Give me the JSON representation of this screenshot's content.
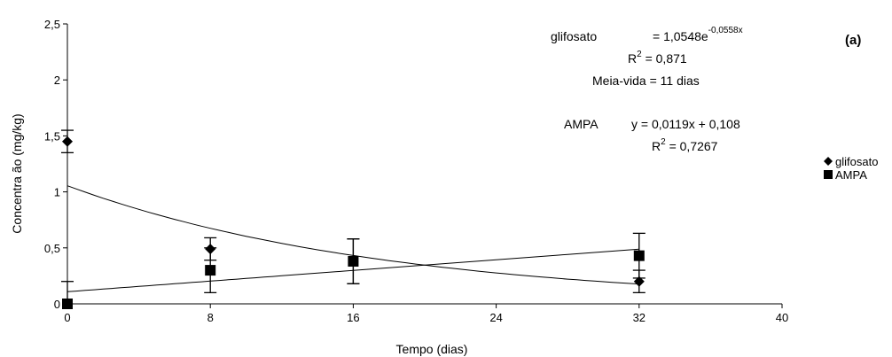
{
  "chart_data": {
    "type": "scatter",
    "panel_label": "(a)",
    "xlabel": "Tempo (dias)",
    "ylabel": "Concentra ão (mg/kg)",
    "xlim": [
      0,
      40
    ],
    "ylim": [
      0,
      2.5
    ],
    "x_ticks": [
      0,
      8,
      16,
      24,
      32,
      40
    ],
    "x_tick_labels": [
      "0",
      "8",
      "16",
      "24",
      "32",
      "40"
    ],
    "y_ticks": [
      0,
      0.5,
      1,
      1.5,
      2,
      2.5
    ],
    "y_tick_labels": [
      "0",
      "0,5",
      "1",
      "1,5",
      "2",
      "2,5"
    ],
    "grid": false,
    "legend_position": "right",
    "series": [
      {
        "name": "glifosato",
        "marker": "diamond",
        "color": "#000000",
        "x": [
          0,
          8,
          16,
          32
        ],
        "y": [
          1.45,
          0.49,
          0.38,
          0.2
        ],
        "err": [
          0.1,
          0.1,
          0.2,
          0.1
        ],
        "fit": {
          "type": "exponential",
          "a": 1.0548,
          "b": -0.0558,
          "x_range": [
            0,
            32
          ]
        }
      },
      {
        "name": "AMPA",
        "marker": "square",
        "color": "#000000",
        "x": [
          0,
          8,
          16,
          32
        ],
        "y": [
          0.0,
          0.3,
          0.38,
          0.43
        ],
        "err": [
          0.2,
          0.2,
          0.2,
          0.2
        ],
        "fit": {
          "type": "linear",
          "slope": 0.0119,
          "intercept": 0.108,
          "x_range": [
            0,
            32
          ]
        }
      }
    ],
    "annotations": {
      "glif_label": "glifosato",
      "glif_eq_prefix": "= 1,0548e",
      "glif_eq_exp": "-0,0558x",
      "glif_r2_prefix": "R",
      "glif_r2_sup": "2",
      "glif_r2_value": " = 0,871",
      "glif_halflife": "Meia-vida = 11 dias",
      "ampa_label": "AMPA",
      "ampa_eq": "y = 0,0119x + 0,108",
      "ampa_r2_prefix": "R",
      "ampa_r2_sup": "2",
      "ampa_r2_value": " = 0,7267"
    }
  }
}
